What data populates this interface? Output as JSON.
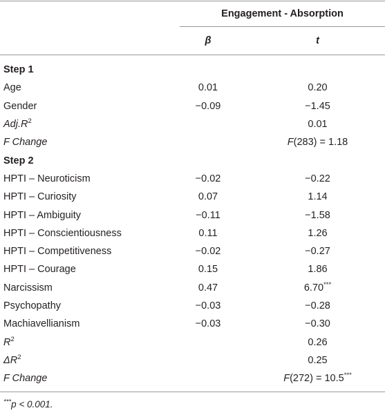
{
  "table": {
    "header": {
      "group": "Engagement - Absorption",
      "columns": [
        "β",
        "t"
      ]
    },
    "rows": [
      {
        "section": "Step 1"
      },
      {
        "label": "Age",
        "beta": "0.01",
        "t": "0.20"
      },
      {
        "label": "Gender",
        "beta": "−0.09",
        "t": "−1.45"
      },
      {
        "label": [
          {
            "text": "Adj.R",
            "italic": true
          },
          {
            "text": "2",
            "sup": true
          }
        ],
        "t": "0.01"
      },
      {
        "label": [
          {
            "text": "F Change",
            "italic": true
          }
        ],
        "t": [
          {
            "text": "F",
            "italic": true
          },
          {
            "text": "(283) = 1.18"
          }
        ]
      },
      {
        "section": "Step 2"
      },
      {
        "label": "HPTI – Neuroticism",
        "beta": "−0.02",
        "t": "−0.22"
      },
      {
        "label": "HPTI – Curiosity",
        "beta": "0.07",
        "t": "1.14"
      },
      {
        "label": "HPTI – Ambiguity",
        "beta": "−0.11",
        "t": "−1.58"
      },
      {
        "label": "HPTI – Conscientiousness",
        "beta": "0.11",
        "t": "1.26"
      },
      {
        "label": "HPTI – Competitiveness",
        "beta": "−0.02",
        "t": "−0.27"
      },
      {
        "label": "HPTI – Courage",
        "beta": "0.15",
        "t": "1.86"
      },
      {
        "label": "Narcissism",
        "beta": "0.47",
        "t": [
          {
            "text": "6.70"
          },
          {
            "text": "***",
            "sup": true
          }
        ]
      },
      {
        "label": "Psychopathy",
        "beta": "−0.03",
        "t": "−0.28"
      },
      {
        "label": "Machiavellianism",
        "beta": "−0.03",
        "t": "−0.30"
      },
      {
        "label": [
          {
            "text": "R",
            "italic": true
          },
          {
            "text": "2",
            "sup": true
          }
        ],
        "t": "0.26"
      },
      {
        "label": [
          {
            "text": "ΔR",
            "italic": true
          },
          {
            "text": "2",
            "sup": true
          }
        ],
        "t": "0.25"
      },
      {
        "label": [
          {
            "text": "F Change",
            "italic": true
          }
        ],
        "t": [
          {
            "text": "F",
            "italic": true
          },
          {
            "text": "(272) = 10.5"
          },
          {
            "text": "***",
            "sup": true
          }
        ]
      }
    ]
  },
  "footnote": [
    {
      "text": "***",
      "sup": true
    },
    {
      "text": "p < 0.001.",
      "italic": true
    }
  ]
}
